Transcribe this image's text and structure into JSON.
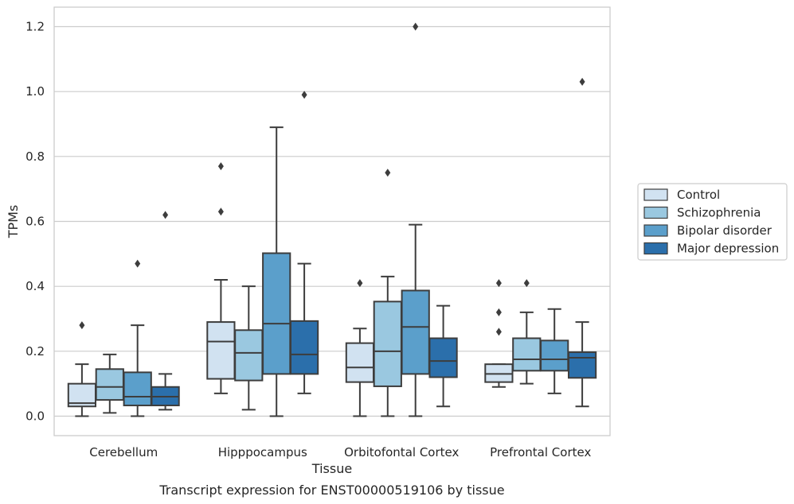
{
  "chart_data": {
    "type": "box",
    "xlabel": "Tissue",
    "ylabel": "TPMs",
    "caption": "Transcript expression for ENST00000519106 by tissue",
    "ylim": [
      -0.06,
      1.26
    ],
    "yticks": [
      0.0,
      0.2,
      0.4,
      0.6,
      0.8,
      1.0,
      1.2
    ],
    "ytick_labels": [
      "0.0",
      "0.2",
      "0.4",
      "0.6",
      "0.8",
      "1.0",
      "1.2"
    ],
    "grid": true,
    "legend_position": "right",
    "categories": [
      "Cerebellum",
      "Hipppocampus",
      "Orbitofontal Cortex",
      "Prefrontal Cortex"
    ],
    "series": [
      {
        "name": "Control",
        "color": "#d1e2f1",
        "boxes": [
          {
            "whislo": 0.0,
            "q1": 0.03,
            "med": 0.04,
            "q3": 0.1,
            "whishi": 0.16,
            "fliers": [
              0.28
            ]
          },
          {
            "whislo": 0.07,
            "q1": 0.115,
            "med": 0.23,
            "q3": 0.29,
            "whishi": 0.42,
            "fliers": [
              0.63,
              0.77
            ]
          },
          {
            "whislo": 0.0,
            "q1": 0.105,
            "med": 0.15,
            "q3": 0.225,
            "whishi": 0.27,
            "fliers": [
              0.41
            ]
          },
          {
            "whislo": 0.09,
            "q1": 0.105,
            "med": 0.13,
            "q3": 0.16,
            "whishi": 0.16,
            "fliers": [
              0.26,
              0.32,
              0.41
            ]
          }
        ]
      },
      {
        "name": "Schizophrenia",
        "color": "#9ac8e0",
        "boxes": [
          {
            "whislo": 0.01,
            "q1": 0.05,
            "med": 0.09,
            "q3": 0.145,
            "whishi": 0.19,
            "fliers": []
          },
          {
            "whislo": 0.02,
            "q1": 0.11,
            "med": 0.195,
            "q3": 0.265,
            "whishi": 0.4,
            "fliers": []
          },
          {
            "whislo": 0.0,
            "q1": 0.092,
            "med": 0.2,
            "q3": 0.353,
            "whishi": 0.43,
            "fliers": [
              0.75
            ]
          },
          {
            "whislo": 0.1,
            "q1": 0.14,
            "med": 0.175,
            "q3": 0.24,
            "whishi": 0.32,
            "fliers": [
              0.41
            ]
          }
        ]
      },
      {
        "name": "Bipolar disorder",
        "color": "#5b9fcb",
        "boxes": [
          {
            "whislo": 0.0,
            "q1": 0.033,
            "med": 0.06,
            "q3": 0.135,
            "whishi": 0.28,
            "fliers": [
              0.47
            ]
          },
          {
            "whislo": 0.0,
            "q1": 0.13,
            "med": 0.285,
            "q3": 0.502,
            "whishi": 0.89,
            "fliers": []
          },
          {
            "whislo": 0.0,
            "q1": 0.13,
            "med": 0.275,
            "q3": 0.387,
            "whishi": 0.59,
            "fliers": [
              1.2
            ]
          },
          {
            "whislo": 0.07,
            "q1": 0.14,
            "med": 0.175,
            "q3": 0.233,
            "whishi": 0.33,
            "fliers": []
          }
        ]
      },
      {
        "name": "Major depression",
        "color": "#2b6fab",
        "boxes": [
          {
            "whislo": 0.02,
            "q1": 0.033,
            "med": 0.06,
            "q3": 0.09,
            "whishi": 0.13,
            "fliers": [
              0.62
            ]
          },
          {
            "whislo": 0.07,
            "q1": 0.13,
            "med": 0.19,
            "q3": 0.293,
            "whishi": 0.47,
            "fliers": [
              0.99
            ]
          },
          {
            "whislo": 0.03,
            "q1": 0.12,
            "med": 0.17,
            "q3": 0.24,
            "whishi": 0.34,
            "fliers": []
          },
          {
            "whislo": 0.03,
            "q1": 0.118,
            "med": 0.18,
            "q3": 0.197,
            "whishi": 0.29,
            "fliers": [
              1.03
            ]
          }
        ]
      }
    ]
  }
}
